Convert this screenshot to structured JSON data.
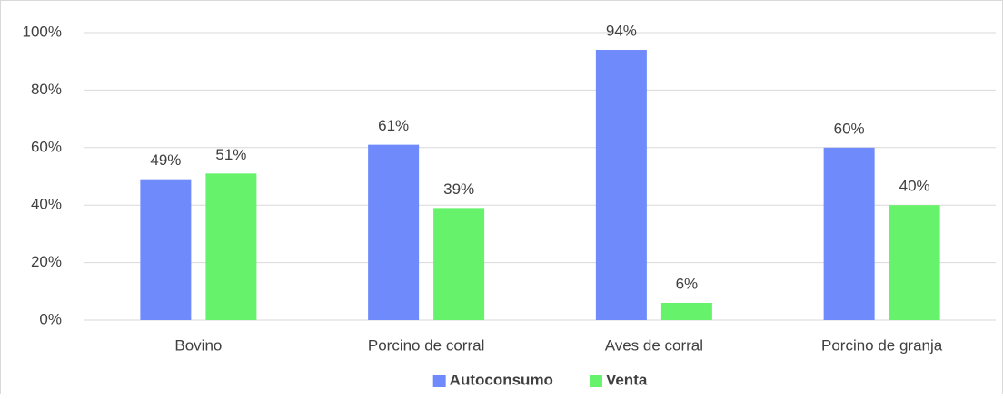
{
  "chart_data": {
    "type": "bar",
    "categories": [
      "Bovino",
      "Porcino de corral",
      "Aves de corral",
      "Porcino de granja"
    ],
    "series": [
      {
        "name": "Autoconsumo",
        "color": "#6f8bfb",
        "values": [
          49,
          61,
          94,
          60
        ],
        "value_labels": [
          "49%",
          "61%",
          "94%",
          "60%"
        ]
      },
      {
        "name": "Venta",
        "color": "#66f36b",
        "values": [
          51,
          39,
          6,
          40
        ],
        "value_labels": [
          "51%",
          "39%",
          "6%",
          "40%"
        ]
      }
    ],
    "ylim": [
      0,
      100
    ],
    "yticks": [
      {
        "value": 0,
        "label": "0%"
      },
      {
        "value": 20,
        "label": "20%"
      },
      {
        "value": 40,
        "label": "40%"
      },
      {
        "value": 60,
        "label": "60%"
      },
      {
        "value": 80,
        "label": "80%"
      },
      {
        "value": 100,
        "label": "100%"
      }
    ],
    "grid": true,
    "legend": "bottom"
  }
}
